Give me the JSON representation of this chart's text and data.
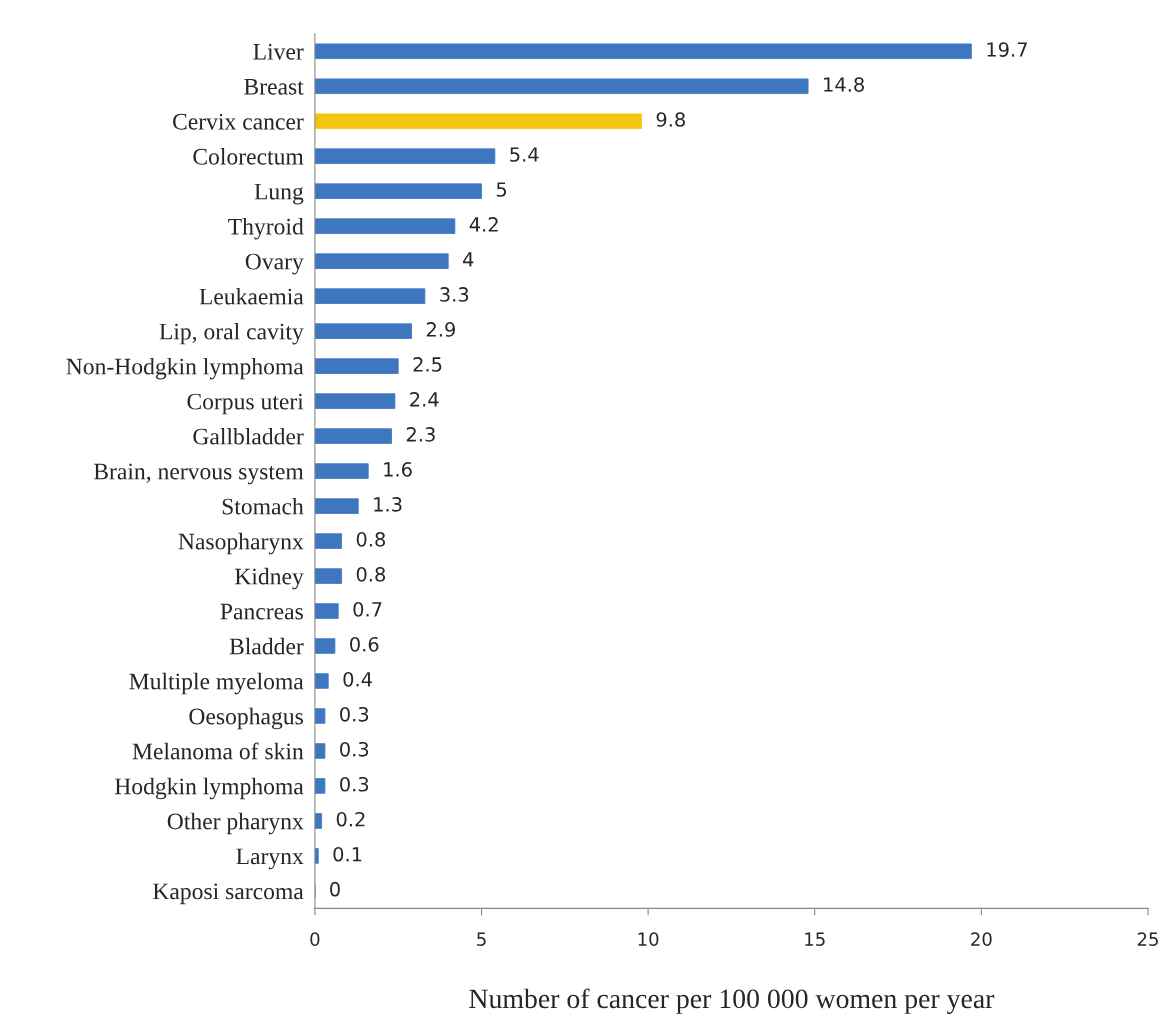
{
  "chart_data": {
    "type": "bar",
    "orientation": "horizontal",
    "xlabel": "Number of cancer per 100 000 women per year",
    "categories": [
      "Liver",
      "Breast",
      "Cervix cancer",
      "Colorectum",
      "Lung",
      "Thyroid",
      "Ovary",
      "Leukaemia",
      "Lip, oral cavity",
      "Non-Hodgkin lymphoma",
      "Corpus uteri",
      "Gallbladder",
      "Brain, nervous system",
      "Stomach",
      "Nasopharynx",
      "Kidney",
      "Pancreas",
      "Bladder",
      "Multiple myeloma",
      "Oesophagus",
      "Melanoma of skin",
      "Hodgkin lymphoma",
      "Other pharynx",
      "Larynx",
      "Kaposi sarcoma"
    ],
    "values": [
      19.7,
      14.8,
      9.8,
      5.4,
      5,
      4.2,
      4,
      3.3,
      2.9,
      2.5,
      2.4,
      2.3,
      1.6,
      1.3,
      0.8,
      0.8,
      0.7,
      0.6,
      0.4,
      0.3,
      0.3,
      0.3,
      0.2,
      0.1,
      0
    ],
    "colors": [
      "#3f76c0",
      "#3f76c0",
      "#f2c512",
      "#3f76c0",
      "#3f76c0",
      "#3f76c0",
      "#3f76c0",
      "#3f76c0",
      "#3f76c0",
      "#3f76c0",
      "#3f76c0",
      "#3f76c0",
      "#3f76c0",
      "#3f76c0",
      "#3f76c0",
      "#3f76c0",
      "#3f76c0",
      "#3f76c0",
      "#3f76c0",
      "#3f76c0",
      "#3f76c0",
      "#3f76c0",
      "#3f76c0",
      "#3f76c0",
      "#3f76c0"
    ],
    "xlim": [
      0,
      25
    ],
    "xticks": [
      0,
      5,
      10,
      15,
      20,
      25
    ],
    "data_labels": true,
    "grid": false,
    "legend": false
  }
}
